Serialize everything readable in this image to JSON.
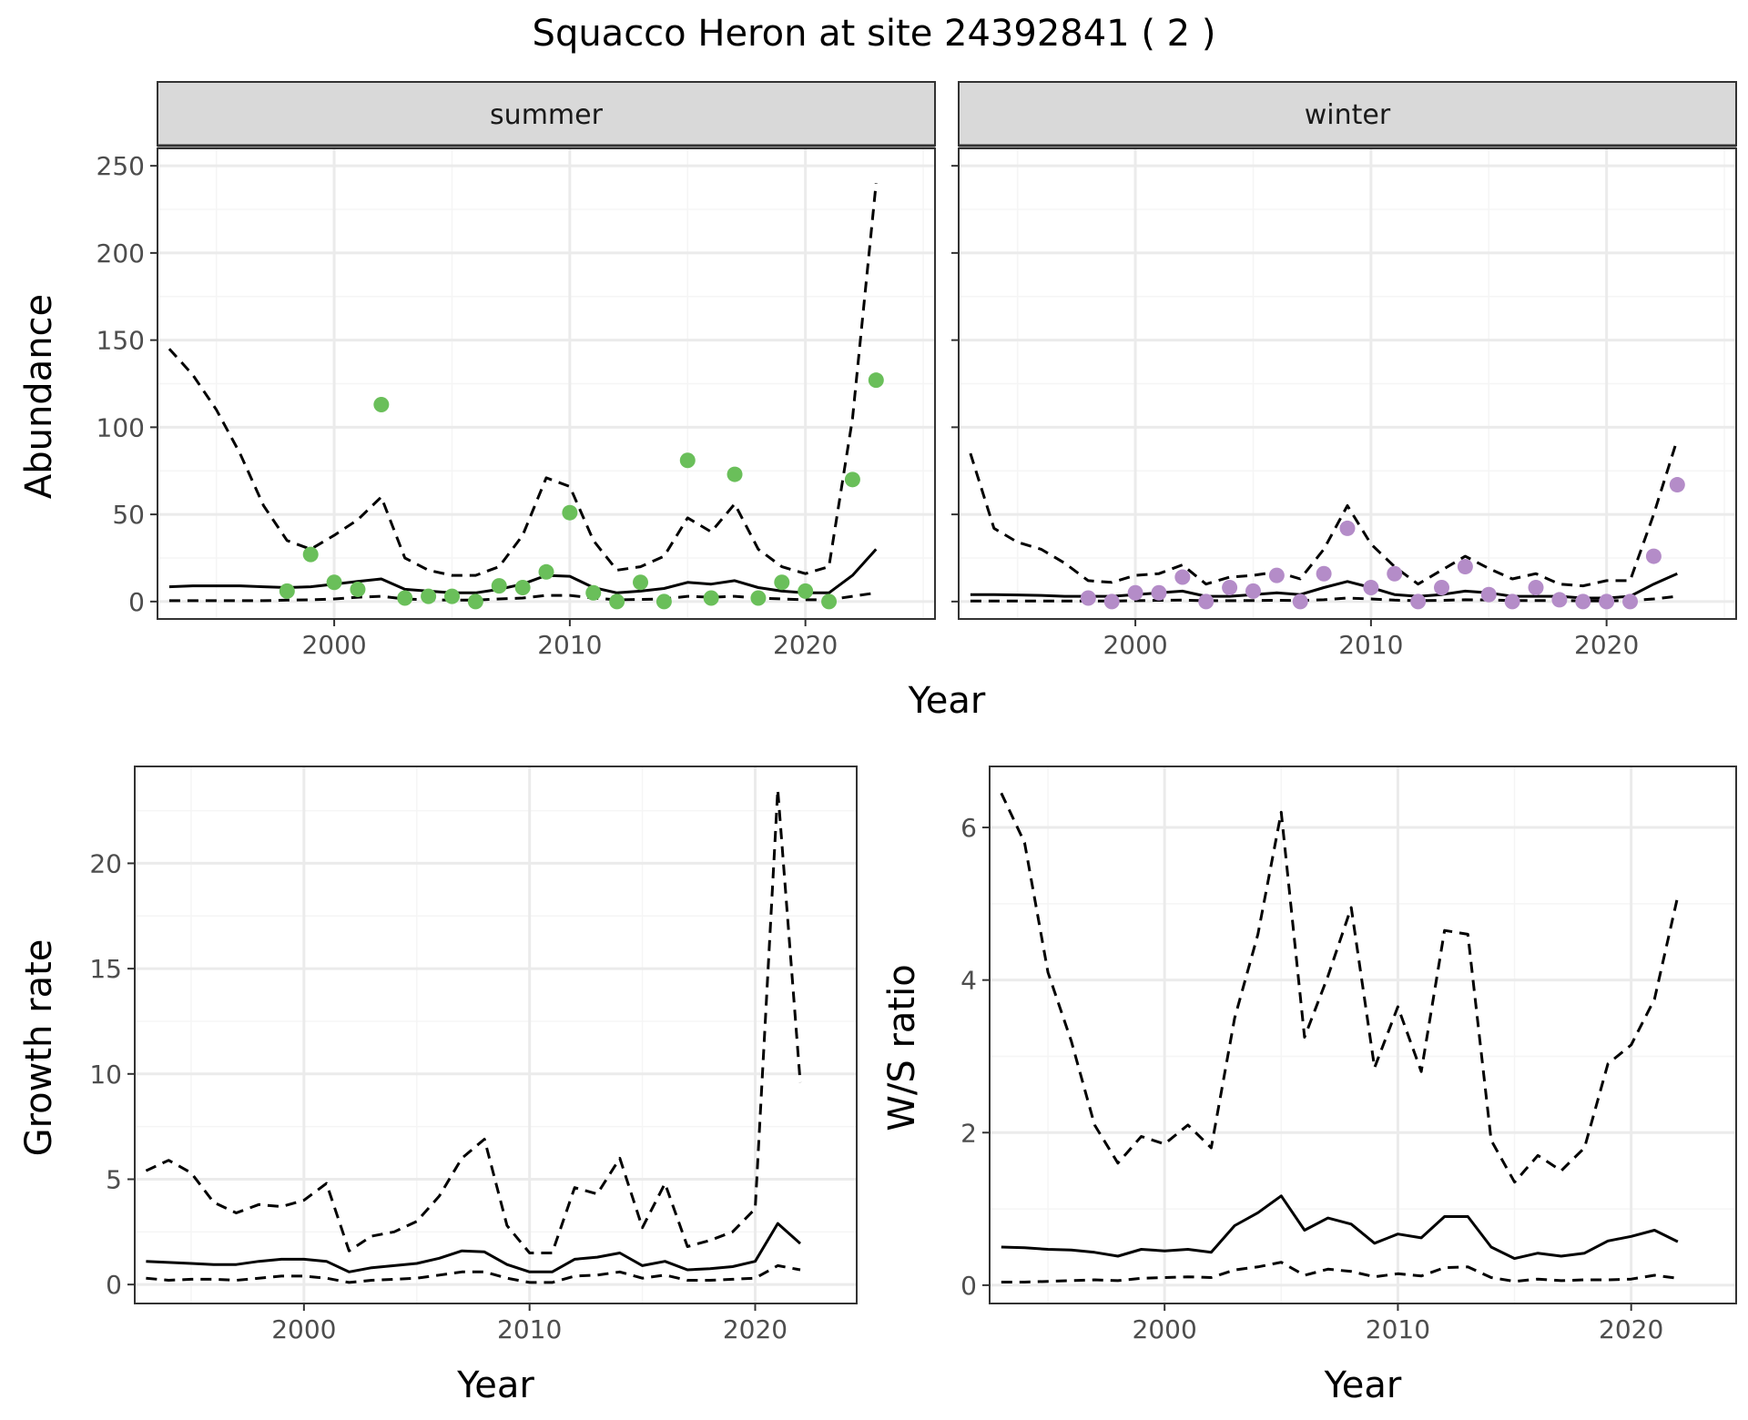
{
  "title": "Squacco Heron at site 24392841 ( 2 )",
  "colors": {
    "summer_points": "#6ABF5A",
    "winter_points": "#B48CC8",
    "strip_bg": "#D9D9D9",
    "grid_major": "#EBEBEB",
    "grid_minor": "#F5F5F5",
    "line": "#000000"
  },
  "chart_data": [
    {
      "type": "line",
      "facet": "summer",
      "xlabel": "Year",
      "ylabel": "Abundance",
      "xlim": [
        1992.5,
        2025.5
      ],
      "ylim": [
        -10,
        260
      ],
      "xticks": [
        2000,
        2010,
        2020
      ],
      "yticks": [
        0,
        50,
        100,
        150,
        200,
        250
      ],
      "series": [
        {
          "role": "estimate",
          "style": "solid",
          "x": [
            1993,
            1994,
            1995,
            1996,
            1997,
            1998,
            1999,
            2000,
            2001,
            2002,
            2003,
            2004,
            2005,
            2006,
            2007,
            2008,
            2009,
            2010,
            2011,
            2012,
            2013,
            2014,
            2015,
            2016,
            2017,
            2018,
            2019,
            2020,
            2021,
            2022,
            2023
          ],
          "y": [
            8.5,
            9,
            9,
            9,
            8.5,
            8,
            8.5,
            10,
            11.5,
            13,
            7,
            6,
            5,
            5,
            7,
            10,
            15,
            14.5,
            8,
            5,
            6,
            7.5,
            11,
            10,
            12,
            8,
            6,
            5,
            5,
            15,
            30
          ]
        },
        {
          "role": "upper",
          "style": "dashed",
          "x": [
            1993,
            1994,
            1995,
            1996,
            1997,
            1998,
            1999,
            2000,
            2001,
            2002,
            2003,
            2004,
            2005,
            2006,
            2007,
            2008,
            2009,
            2010,
            2011,
            2012,
            2013,
            2014,
            2015,
            2016,
            2017,
            2018,
            2019,
            2020,
            2021,
            2022,
            2023
          ],
          "y": [
            145,
            130,
            110,
            85,
            55,
            35,
            30,
            38,
            47,
            60,
            25,
            18,
            15,
            15,
            20,
            38,
            71,
            66,
            35,
            18,
            20,
            26,
            48,
            40,
            56,
            30,
            20,
            16,
            20,
            105,
            240
          ]
        },
        {
          "role": "lower",
          "style": "dashed",
          "x": [
            1993,
            1994,
            1995,
            1996,
            1997,
            1998,
            1999,
            2000,
            2001,
            2002,
            2003,
            2004,
            2005,
            2006,
            2007,
            2008,
            2009,
            2010,
            2011,
            2012,
            2013,
            2014,
            2015,
            2016,
            2017,
            2018,
            2019,
            2020,
            2021,
            2022,
            2023
          ],
          "y": [
            0.5,
            0.5,
            0.5,
            0.5,
            0.5,
            0.8,
            1,
            1.5,
            2.5,
            3,
            1.5,
            1,
            0.8,
            0.8,
            1.5,
            2,
            3.5,
            3.5,
            2,
            1,
            1.2,
            1.5,
            3,
            2.5,
            3,
            2,
            1.5,
            1,
            1,
            3,
            5
          ]
        },
        {
          "role": "observed",
          "style": "points",
          "x": [
            1998,
            1999,
            2000,
            2001,
            2002,
            2003,
            2004,
            2005,
            2006,
            2007,
            2008,
            2009,
            2010,
            2011,
            2012,
            2013,
            2014,
            2015,
            2016,
            2017,
            2018,
            2019,
            2020,
            2021,
            2022,
            2023
          ],
          "y": [
            6,
            27,
            11,
            7,
            113,
            2,
            3,
            3,
            0,
            9,
            8,
            17,
            51,
            5,
            0,
            11,
            0,
            81,
            2,
            73,
            2,
            11,
            6,
            0,
            70,
            127
          ]
        }
      ]
    },
    {
      "type": "line",
      "facet": "winter",
      "xlabel": "Year",
      "ylabel": "Abundance",
      "xlim": [
        1992.5,
        2025.5
      ],
      "ylim": [
        -10,
        260
      ],
      "xticks": [
        2000,
        2010,
        2020
      ],
      "yticks": [
        0,
        50,
        100,
        150,
        200,
        250
      ],
      "series": [
        {
          "role": "estimate",
          "style": "solid",
          "x": [
            1993,
            1994,
            1995,
            1996,
            1997,
            1998,
            1999,
            2000,
            2001,
            2002,
            2003,
            2004,
            2005,
            2006,
            2007,
            2008,
            2009,
            2010,
            2011,
            2012,
            2013,
            2014,
            2015,
            2016,
            2017,
            2018,
            2019,
            2020,
            2021,
            2022,
            2023
          ],
          "y": [
            4,
            4,
            3.8,
            3.5,
            3,
            3,
            3,
            4,
            5,
            6,
            3,
            3,
            4,
            5,
            4,
            8,
            11.5,
            8,
            4,
            3,
            4,
            6,
            5,
            3,
            3,
            3,
            2,
            2,
            3,
            10,
            16
          ]
        },
        {
          "role": "upper",
          "style": "dashed",
          "x": [
            1993,
            1994,
            1995,
            1996,
            1997,
            1998,
            1999,
            2000,
            2001,
            2002,
            2003,
            2004,
            2005,
            2006,
            2007,
            2008,
            2009,
            2010,
            2011,
            2012,
            2013,
            2014,
            2015,
            2016,
            2017,
            2018,
            2019,
            2020,
            2021,
            2022,
            2023
          ],
          "y": [
            85,
            42,
            34,
            30,
            22,
            12,
            11,
            15,
            16,
            21,
            10,
            14,
            15,
            17,
            13,
            30,
            55,
            33,
            20,
            10,
            18,
            26,
            19,
            13,
            16,
            10,
            9,
            12,
            12,
            50,
            93
          ]
        },
        {
          "role": "lower",
          "style": "dashed",
          "x": [
            1993,
            1994,
            1995,
            1996,
            1997,
            1998,
            1999,
            2000,
            2001,
            2002,
            2003,
            2004,
            2005,
            2006,
            2007,
            2008,
            2009,
            2010,
            2011,
            2012,
            2013,
            2014,
            2015,
            2016,
            2017,
            2018,
            2019,
            2020,
            2021,
            2022,
            2023
          ],
          "y": [
            0.3,
            0.3,
            0.3,
            0.3,
            0.3,
            0.3,
            0.3,
            0.5,
            0.7,
            0.8,
            0.5,
            0.5,
            0.6,
            0.7,
            0.6,
            1,
            2,
            1.5,
            0.8,
            0.5,
            0.7,
            1,
            0.9,
            0.6,
            0.6,
            0.6,
            0.4,
            0.4,
            0.6,
            1.5,
            3
          ]
        },
        {
          "role": "observed",
          "style": "points",
          "x": [
            1998,
            1999,
            2000,
            2001,
            2002,
            2003,
            2004,
            2005,
            2006,
            2007,
            2008,
            2009,
            2010,
            2011,
            2012,
            2013,
            2014,
            2015,
            2016,
            2017,
            2018,
            2019,
            2020,
            2021,
            2022,
            2023
          ],
          "y": [
            2,
            0,
            5,
            5,
            14,
            0,
            8,
            6,
            15,
            0,
            16,
            42,
            8,
            16,
            0,
            8,
            20,
            4,
            0,
            8,
            1,
            0,
            0,
            0,
            26,
            67
          ]
        }
      ]
    },
    {
      "type": "line",
      "facet": "",
      "xlabel": "Year",
      "ylabel": "Growth rate",
      "xlim": [
        1992.5,
        2024.5
      ],
      "ylim": [
        -0.9,
        24.6
      ],
      "xticks": [
        2000,
        2010,
        2020
      ],
      "yticks": [
        0,
        5,
        10,
        15,
        20
      ],
      "series": [
        {
          "role": "estimate",
          "style": "solid",
          "x": [
            1993,
            1994,
            1995,
            1996,
            1997,
            1998,
            1999,
            2000,
            2001,
            2002,
            2003,
            2004,
            2005,
            2006,
            2007,
            2008,
            2009,
            2010,
            2011,
            2012,
            2013,
            2014,
            2015,
            2016,
            2017,
            2018,
            2019,
            2020,
            2021,
            2022
          ],
          "y": [
            1.1,
            1.05,
            1.0,
            0.95,
            0.95,
            1.1,
            1.2,
            1.2,
            1.1,
            0.6,
            0.8,
            0.9,
            1.0,
            1.25,
            1.6,
            1.55,
            0.95,
            0.6,
            0.6,
            1.2,
            1.3,
            1.5,
            0.9,
            1.1,
            0.7,
            0.75,
            0.85,
            1.1,
            2.9,
            1.95
          ]
        },
        {
          "role": "upper",
          "style": "dashed",
          "x": [
            1993,
            1994,
            1995,
            1996,
            1997,
            1998,
            1999,
            2000,
            2001,
            2002,
            2003,
            2004,
            2005,
            2006,
            2007,
            2008,
            2009,
            2010,
            2011,
            2012,
            2013,
            2014,
            2015,
            2016,
            2017,
            2018,
            2019,
            2020,
            2021,
            2022
          ],
          "y": [
            5.4,
            5.9,
            5.3,
            3.9,
            3.4,
            3.8,
            3.7,
            4.0,
            4.8,
            1.6,
            2.3,
            2.5,
            3.0,
            4.2,
            6.0,
            6.9,
            2.8,
            1.5,
            1.5,
            4.6,
            4.3,
            6.0,
            2.7,
            4.8,
            1.8,
            2.1,
            2.5,
            3.6,
            23.5,
            9.6
          ]
        },
        {
          "role": "lower",
          "style": "dashed",
          "x": [
            1993,
            1994,
            1995,
            1996,
            1997,
            1998,
            1999,
            2000,
            2001,
            2002,
            2003,
            2004,
            2005,
            2006,
            2007,
            2008,
            2009,
            2010,
            2011,
            2012,
            2013,
            2014,
            2015,
            2016,
            2017,
            2018,
            2019,
            2020,
            2021,
            2022
          ],
          "y": [
            0.3,
            0.2,
            0.25,
            0.25,
            0.2,
            0.3,
            0.4,
            0.4,
            0.3,
            0.1,
            0.2,
            0.25,
            0.3,
            0.45,
            0.6,
            0.6,
            0.3,
            0.1,
            0.1,
            0.4,
            0.45,
            0.6,
            0.3,
            0.45,
            0.2,
            0.2,
            0.25,
            0.3,
            0.9,
            0.7
          ]
        }
      ]
    },
    {
      "type": "line",
      "facet": "",
      "xlabel": "Year",
      "ylabel": "W/S ratio",
      "xlim": [
        1992.5,
        2024.5
      ],
      "ylim": [
        -0.24,
        6.8
      ],
      "xticks": [
        2000,
        2010,
        2020
      ],
      "yticks": [
        0,
        2,
        4,
        6
      ],
      "series": [
        {
          "role": "estimate",
          "style": "solid",
          "x": [
            1993,
            1994,
            1995,
            1996,
            1997,
            1998,
            1999,
            2000,
            2001,
            2002,
            2003,
            2004,
            2005,
            2006,
            2007,
            2008,
            2009,
            2010,
            2011,
            2012,
            2013,
            2014,
            2015,
            2016,
            2017,
            2018,
            2019,
            2020,
            2021,
            2022
          ],
          "y": [
            0.5,
            0.49,
            0.47,
            0.46,
            0.43,
            0.38,
            0.47,
            0.45,
            0.47,
            0.43,
            0.78,
            0.95,
            1.17,
            0.72,
            0.88,
            0.8,
            0.55,
            0.67,
            0.62,
            0.9,
            0.9,
            0.5,
            0.35,
            0.42,
            0.38,
            0.42,
            0.58,
            0.64,
            0.72,
            0.57
          ]
        },
        {
          "role": "upper",
          "style": "dashed",
          "x": [
            1993,
            1994,
            1995,
            1996,
            1997,
            1998,
            1999,
            2000,
            2001,
            2002,
            2003,
            2004,
            2005,
            2006,
            2007,
            2008,
            2009,
            2010,
            2011,
            2012,
            2013,
            2014,
            2015,
            2016,
            2017,
            2018,
            2019,
            2020,
            2021,
            2022
          ],
          "y": [
            6.45,
            5.8,
            4.1,
            3.2,
            2.1,
            1.6,
            1.95,
            1.85,
            2.1,
            1.8,
            3.5,
            4.6,
            6.2,
            3.25,
            4.05,
            4.95,
            2.85,
            3.65,
            2.8,
            4.65,
            4.6,
            1.9,
            1.35,
            1.7,
            1.5,
            1.8,
            2.9,
            3.15,
            3.75,
            5.1
          ]
        },
        {
          "role": "lower",
          "style": "dashed",
          "x": [
            1993,
            1994,
            1995,
            1996,
            1997,
            1998,
            1999,
            2000,
            2001,
            2002,
            2003,
            2004,
            2005,
            2006,
            2007,
            2008,
            2009,
            2010,
            2011,
            2012,
            2013,
            2014,
            2015,
            2016,
            2017,
            2018,
            2019,
            2020,
            2021,
            2022
          ],
          "y": [
            0.04,
            0.04,
            0.05,
            0.06,
            0.07,
            0.06,
            0.09,
            0.1,
            0.11,
            0.1,
            0.2,
            0.24,
            0.3,
            0.13,
            0.21,
            0.18,
            0.11,
            0.15,
            0.12,
            0.23,
            0.24,
            0.1,
            0.05,
            0.08,
            0.06,
            0.07,
            0.07,
            0.08,
            0.13,
            0.09
          ]
        }
      ]
    }
  ]
}
